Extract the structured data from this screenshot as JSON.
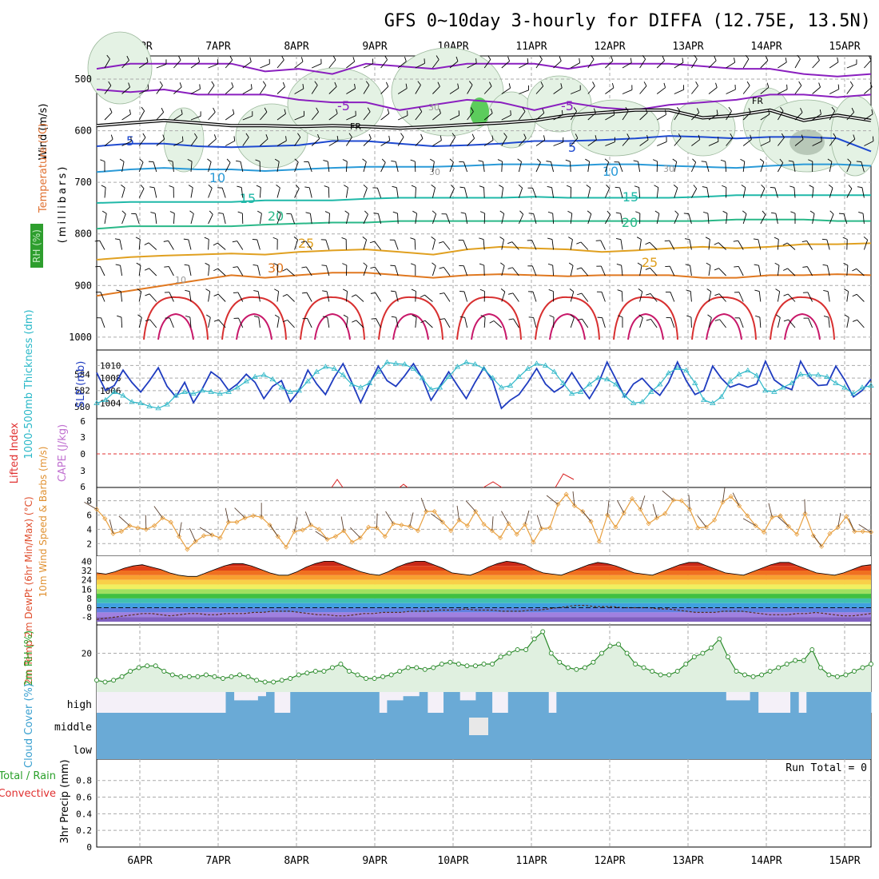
{
  "chart_data": {
    "type": "meteogram",
    "title": "GFS 0~10day 3-hourly for DIFFA (12.75E, 13.5N)",
    "dates": [
      "6APR",
      "7APR",
      "8APR",
      "9APR",
      "10APR",
      "11APR",
      "12APR",
      "13APR",
      "14APR",
      "15APR"
    ],
    "upper_panel": {
      "ylabel_parts": [
        "Wind (m/s)",
        "Temperature (°C)",
        "RH (%)",
        "(millibars)"
      ],
      "y_ticks": [
        500,
        600,
        700,
        800,
        900,
        1000
      ],
      "contour_labels": [
        "-5",
        "-5",
        "FR",
        "FR",
        "5",
        "5",
        "10",
        "10",
        "15",
        "15",
        "20",
        "20",
        "25",
        "25",
        "30",
        "30",
        "30",
        "30",
        "10"
      ],
      "isotherms": [
        {
          "temp": -10,
          "color": "#8a1fbf",
          "p": [
            480,
            470,
            470,
            470,
            470,
            485,
            480,
            490,
            470,
            475,
            480,
            470,
            470,
            470,
            480,
            470,
            470,
            470,
            475,
            480,
            480,
            490,
            495,
            490
          ]
        },
        {
          "temp": -5,
          "color": "#8a1fbf",
          "p": [
            520,
            525,
            520,
            530,
            530,
            530,
            540,
            545,
            545,
            560,
            550,
            540,
            545,
            560,
            545,
            555,
            560,
            550,
            545,
            540,
            530,
            530,
            535,
            530
          ]
        },
        {
          "temp": 0,
          "color": "#000000",
          "p": [
            590,
            585,
            580,
            585,
            590,
            590,
            592,
            590,
            592,
            595,
            592,
            588,
            585,
            580,
            570,
            565,
            560,
            560,
            575,
            570,
            560,
            580,
            570,
            580
          ]
        },
        {
          "temp": 5,
          "color": "#1f4ad0",
          "p": [
            630,
            625,
            625,
            630,
            632,
            630,
            628,
            620,
            620,
            625,
            630,
            628,
            625,
            620,
            620,
            618,
            615,
            610,
            612,
            615,
            612,
            612,
            615,
            640
          ]
        },
        {
          "temp": 10,
          "color": "#2a9ad8",
          "p": [
            680,
            675,
            672,
            675,
            675,
            678,
            675,
            672,
            670,
            670,
            670,
            668,
            665,
            665,
            668,
            665,
            665,
            668,
            670,
            672,
            668,
            665,
            665,
            668
          ]
        },
        {
          "temp": 15,
          "color": "#1fb8a8",
          "p": [
            740,
            738,
            738,
            738,
            738,
            735,
            735,
            735,
            732,
            730,
            730,
            730,
            730,
            728,
            730,
            730,
            730,
            730,
            728,
            725,
            725,
            725,
            725,
            725
          ]
        },
        {
          "temp": 20,
          "color": "#2ab888",
          "p": [
            790,
            785,
            785,
            785,
            785,
            782,
            780,
            778,
            778,
            775,
            775,
            775,
            775,
            775,
            775,
            775,
            775,
            775,
            775,
            772,
            772,
            772,
            775,
            775
          ]
        },
        {
          "temp": 25,
          "color": "#e0a020",
          "p": [
            850,
            845,
            842,
            840,
            838,
            840,
            835,
            832,
            830,
            835,
            840,
            830,
            825,
            828,
            830,
            835,
            832,
            828,
            825,
            828,
            825,
            820,
            820,
            818
          ]
        },
        {
          "temp": 30,
          "color": "#e07820",
          "p": [
            920,
            910,
            900,
            890,
            880,
            885,
            880,
            875,
            875,
            880,
            885,
            880,
            878,
            880,
            882,
            880,
            880,
            880,
            885,
            885,
            880,
            880,
            878,
            880
          ]
        }
      ]
    },
    "slp_panel": {
      "ylabel_left": "1000-500mb Thickness (dm)",
      "ylabel_right": "SLP (mb)",
      "left_ticks": [
        "580",
        "582",
        "584"
      ],
      "right_ticks": [
        "1004",
        "1006",
        "1008",
        "1010"
      ],
      "thickness_dm": [
        584.2,
        582.0,
        582.6,
        584.5,
        583.0,
        581.8,
        583.2,
        584.8,
        582.5,
        581.2,
        583.0,
        580.5,
        582.2,
        584.3,
        583.5,
        582.0,
        582.8,
        584.0,
        583.0,
        581.0,
        582.5,
        583.2,
        580.6,
        582.0,
        584.5,
        582.8,
        581.5,
        583.6,
        585.3,
        583.0,
        580.5,
        582.8,
        585.0,
        583.2,
        582.5,
        583.8,
        585.3,
        583.5,
        580.8,
        582.5,
        584.3,
        582.6,
        581.0,
        583.0,
        584.8,
        583.2,
        579.8,
        580.8,
        581.5,
        583.0,
        584.7,
        582.8,
        581.8,
        582.5,
        584.2,
        582.5,
        581.0,
        582.8,
        585.5,
        583.4,
        581.2,
        582.8,
        583.5,
        582.3,
        581.4,
        583.0,
        585.5,
        583.2,
        581.5,
        582.0,
        585.0,
        583.5,
        582.4,
        582.8,
        582.4,
        582.8,
        585.6,
        583.3,
        582.5,
        582.1,
        585.6,
        583.7,
        582.6,
        582.7,
        585.0,
        583.3,
        581.2,
        582.0,
        583.4
      ],
      "slp_mb": [
        1004.0,
        1004.5,
        1005.8,
        1005.2,
        1004.2,
        1004.0,
        1003.5,
        1003.2,
        1003.8,
        1005.2,
        1005.8,
        1005.5,
        1006.0,
        1005.8,
        1005.5,
        1005.8,
        1006.5,
        1007.5,
        1008.2,
        1008.5,
        1007.8,
        1006.5,
        1005.8,
        1006.0,
        1007.5,
        1009.0,
        1009.8,
        1009.5,
        1008.5,
        1007.0,
        1006.5,
        1007.2,
        1009.0,
        1010.5,
        1010.3,
        1010.2,
        1009.5,
        1008.0,
        1006.2,
        1006.5,
        1008.2,
        1009.8,
        1010.5,
        1010.2,
        1009.5,
        1008.0,
        1006.5,
        1006.8,
        1008.2,
        1009.5,
        1010.3,
        1010.0,
        1009.0,
        1007.2,
        1005.5,
        1005.8,
        1007.0,
        1008.0,
        1007.8,
        1007.0,
        1005.2,
        1004.0,
        1004.2,
        1005.8,
        1007.0,
        1008.8,
        1009.6,
        1009.2,
        1007.2,
        1004.5,
        1004.0,
        1005.0,
        1007.5,
        1008.6,
        1009.2,
        1008.4,
        1006.0,
        1005.8,
        1006.5,
        1007.2,
        1008.6,
        1008.5,
        1008.5,
        1008.2,
        1007.2,
        1006.5,
        1005.5,
        1006.5,
        1006.8
      ]
    },
    "li_panel": {
      "ylabel_left": "Lifted Index",
      "ylabel_right": "CAPE (J/kg)",
      "ticks": [
        "6",
        "3",
        "0",
        "3",
        "6"
      ]
    },
    "wind_panel": {
      "ylabel": "10m Wind Speed & Barbs (m/s)",
      "ticks": [
        "2",
        "4",
        "6",
        "8"
      ],
      "speed_ms": [
        6.8,
        5.5,
        3.4,
        3.7,
        4.5,
        4.2,
        4.0,
        4.5,
        5.6,
        5.0,
        3.0,
        1.2,
        2.3,
        3.1,
        3.2,
        2.8,
        5.0,
        5.0,
        5.6,
        5.9,
        5.7,
        4.6,
        3.0,
        1.5,
        3.7,
        3.9,
        4.6,
        4.0,
        2.6,
        3.0,
        3.8,
        2.2,
        2.8,
        4.3,
        4.2,
        3.0,
        4.8,
        4.6,
        4.4,
        3.8,
        6.5,
        6.5,
        5.0,
        3.8,
        5.3,
        4.5,
        6.5,
        4.7,
        3.8,
        2.8,
        4.8,
        3.3,
        4.7,
        2.2,
        4.1,
        4.2,
        7.5,
        8.9,
        7.3,
        6.5,
        5.1,
        2.3,
        6.0,
        4.3,
        6.3,
        8.3,
        6.8,
        4.8,
        5.6,
        6.2,
        8.1,
        8.0,
        6.8,
        4.2,
        4.3,
        5.3,
        7.8,
        8.6,
        7.3,
        5.9,
        4.5,
        3.6,
        5.7,
        5.9,
        4.4,
        3.3,
        6.2,
        3.1,
        1.6,
        3.4,
        4.3,
        5.8,
        3.7,
        3.7,
        3.6
      ]
    },
    "temp_panel": {
      "ylabel": "2m Temp 2m DewPt (6hr Min/Max) (°C)",
      "ticks": [
        "-8",
        "0",
        "8",
        "16",
        "24",
        "32",
        "40"
      ],
      "temp_c": [
        30,
        29,
        31,
        34,
        36,
        37,
        35,
        33,
        30,
        28,
        27,
        27,
        30,
        33,
        36,
        38,
        38,
        36,
        33,
        30,
        28,
        28,
        31,
        35,
        38,
        40,
        40,
        37,
        34,
        31,
        29,
        28,
        31,
        35,
        38,
        40,
        40,
        37,
        34,
        30,
        29,
        28,
        31,
        35,
        38,
        40,
        39,
        37,
        33,
        30,
        29,
        28,
        31,
        34,
        37,
        39,
        38,
        36,
        33,
        30,
        29,
        28,
        31,
        34,
        37,
        39,
        39,
        36,
        33,
        30,
        29,
        28,
        31,
        34,
        37,
        39,
        39,
        36,
        33,
        30,
        29,
        28,
        30,
        33,
        36,
        37
      ],
      "dewpt_c": [
        -10,
        -9,
        -8,
        -7,
        -6,
        -5,
        -5,
        -6,
        -7,
        -6,
        -5,
        -5,
        -6,
        -6,
        -5,
        -5,
        -5,
        -4,
        -4,
        -3,
        -3,
        -3,
        -4,
        -5,
        -6,
        -6,
        -7,
        -7,
        -6,
        -5,
        -5,
        -4,
        -4,
        -4,
        -3,
        -3,
        -3,
        -2,
        -2,
        -2,
        -1,
        -2,
        -2,
        -2,
        -3,
        -3,
        -3,
        -2,
        -2,
        -1,
        0,
        1,
        2,
        2,
        1,
        1,
        1,
        0,
        0,
        0,
        0,
        -1,
        -1,
        -2,
        -3,
        -4,
        -4,
        -4,
        -3,
        -3,
        -3,
        -4,
        -5,
        -6,
        -6,
        -6,
        -5,
        -5,
        -4,
        -5,
        -6,
        -7,
        -7,
        -6,
        -5
      ]
    },
    "rh_panel": {
      "ylabel": "2m RH (%)",
      "ticks": [
        "20"
      ],
      "rh_pct": [
        5,
        4,
        5,
        7,
        10,
        12,
        13,
        13,
        10,
        8,
        7,
        7,
        7,
        8,
        7,
        6,
        7,
        8,
        7,
        5,
        4,
        4,
        5,
        6,
        8,
        9,
        10,
        10,
        12,
        14,
        10,
        8,
        6,
        6,
        7,
        8,
        10,
        12,
        12,
        11,
        12,
        14,
        15,
        14,
        13,
        13,
        14,
        14,
        18,
        20,
        22,
        22,
        28,
        32,
        20,
        15,
        12,
        11,
        12,
        15,
        20,
        24,
        25,
        20,
        14,
        12,
        10,
        8,
        8,
        10,
        14,
        18,
        20,
        23,
        28,
        18,
        10,
        8,
        7,
        8,
        10,
        12,
        14,
        16,
        16,
        22,
        12,
        8,
        7,
        8,
        10,
        12,
        14
      ]
    },
    "cloud_panel": {
      "ylabel": "Cloud Cover (%)",
      "levels": [
        "high",
        "middle",
        "low"
      ],
      "high_pct": [
        0,
        0,
        0,
        0,
        0,
        0,
        0,
        0,
        0,
        0,
        0,
        0,
        0,
        0,
        0,
        0,
        100,
        60,
        60,
        60,
        80,
        100,
        0,
        0,
        100,
        100,
        100,
        100,
        100,
        100,
        100,
        100,
        100,
        100,
        100,
        0,
        60,
        60,
        80,
        80,
        100,
        0,
        0,
        100,
        100,
        60,
        60,
        100,
        100,
        0,
        0,
        100,
        100,
        100,
        100,
        100,
        0,
        100,
        100,
        100,
        100,
        100,
        100,
        100,
        100,
        100,
        100,
        100,
        100,
        100,
        100,
        100,
        100,
        100,
        100,
        100,
        100,
        100,
        60,
        60,
        60,
        100,
        0,
        0,
        0,
        0,
        100,
        0,
        100,
        100,
        100,
        100,
        100,
        100,
        100,
        100
      ],
      "middle_gap": true
    },
    "precip_panel": {
      "ylabel_left": "Total / Rain",
      "ylabel_left2": "Convective",
      "ylabel": "3hr Precip (mm)",
      "ticks": [
        "0",
        "0.2",
        "0.4",
        "0.6",
        "0.8"
      ],
      "run_total": "Run Total = 0"
    }
  }
}
